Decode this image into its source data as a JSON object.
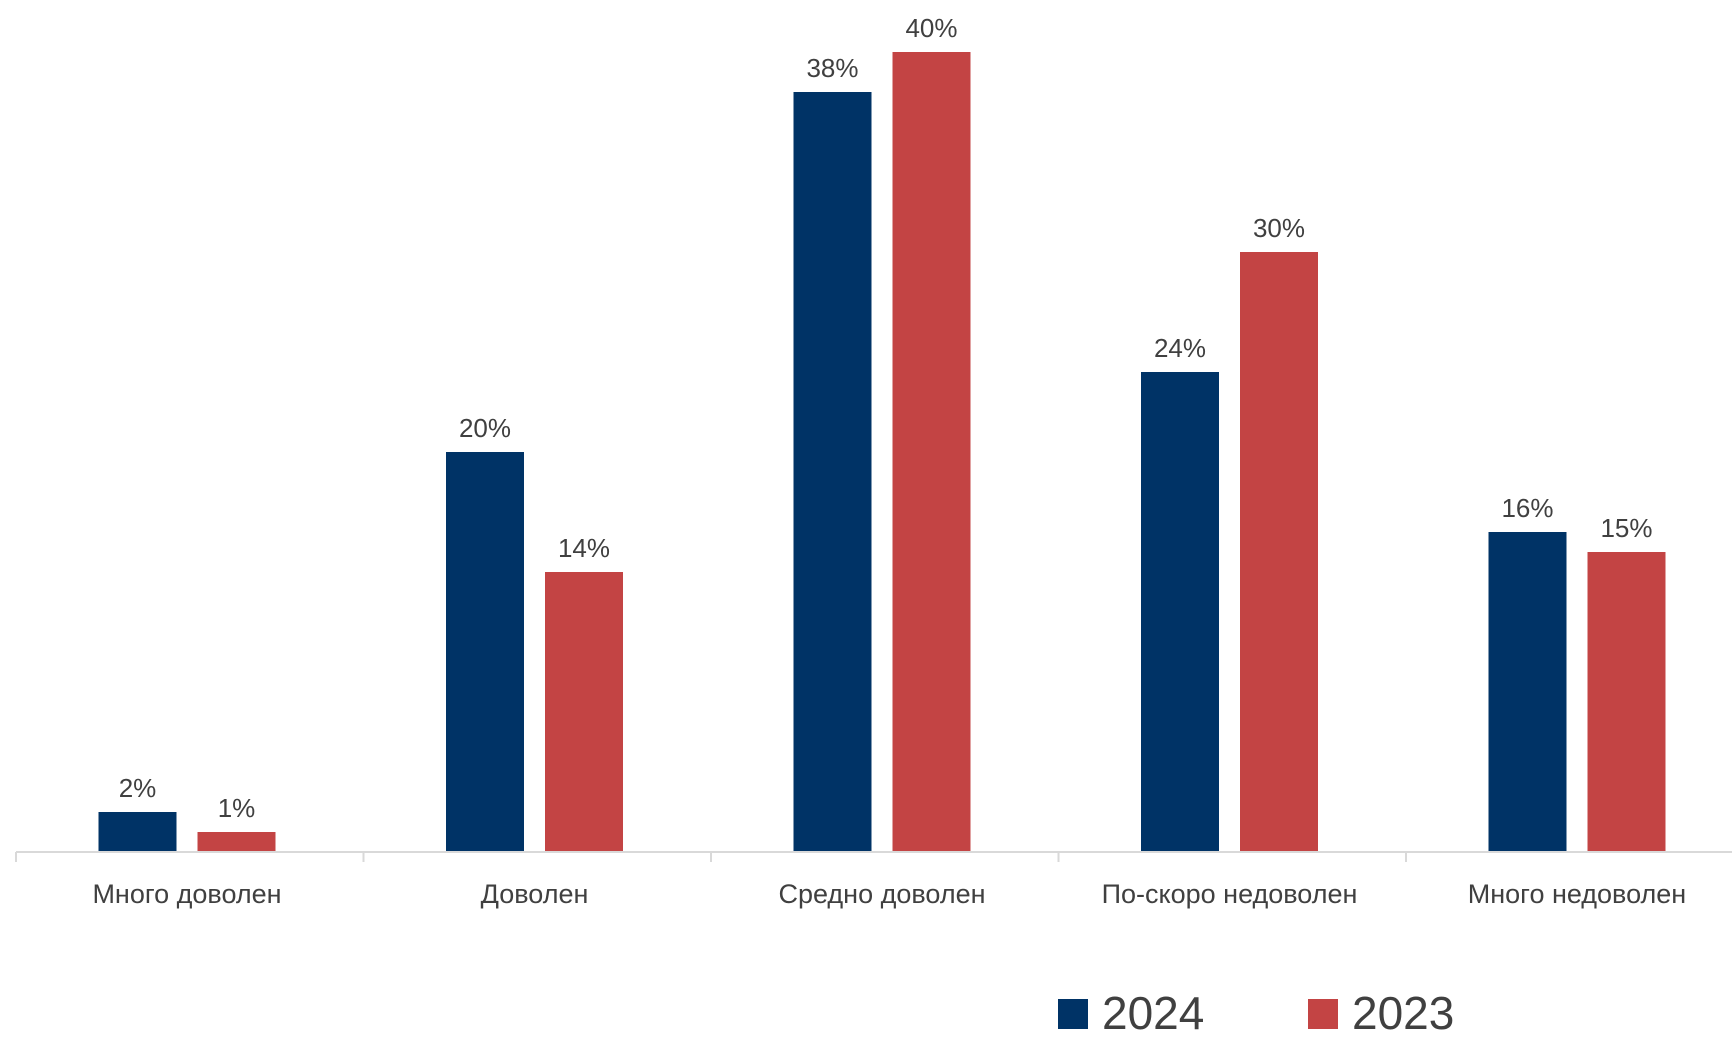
{
  "chart_data": {
    "type": "bar",
    "categories": [
      "Много доволен",
      "Доволен",
      "Средно доволен",
      "По-скоро недоволен",
      "Много недоволен"
    ],
    "series": [
      {
        "name": "2024",
        "color": "#003366",
        "values": [
          2,
          20,
          38,
          24,
          16
        ],
        "labels": [
          "2%",
          "20%",
          "38%",
          "24%",
          "16%"
        ]
      },
      {
        "name": "2023",
        "color": "#C34444",
        "values": [
          1,
          14,
          40,
          30,
          15
        ],
        "labels": [
          "1%",
          "14%",
          "40%",
          "30%",
          "15%"
        ]
      }
    ],
    "ylim": [
      0,
      40
    ],
    "grid": false,
    "legend_position": "bottom-right",
    "axis_color": "#d9d9d9"
  }
}
